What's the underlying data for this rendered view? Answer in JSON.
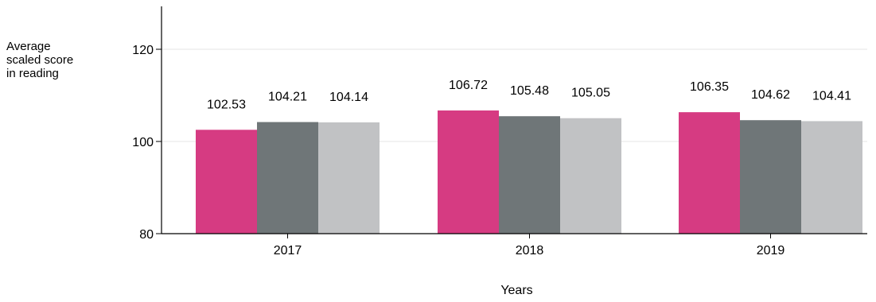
{
  "chart_data": {
    "type": "bar",
    "categories": [
      "2017",
      "2018",
      "2019"
    ],
    "series": [
      {
        "color": "#d63b82",
        "values": [
          102.53,
          106.72,
          106.35
        ]
      },
      {
        "color": "#6f7678",
        "values": [
          104.21,
          105.48,
          104.62
        ]
      },
      {
        "color": "#c1c2c4",
        "values": [
          104.14,
          105.05,
          104.41
        ]
      }
    ],
    "data_labels": [
      [
        "102.53",
        "104.21",
        "104.14"
      ],
      [
        "106.72",
        "105.48",
        "105.05"
      ],
      [
        "106.35",
        "104.62",
        "104.41"
      ]
    ],
    "ylabel_lines": [
      "Average",
      "scaled score",
      "in reading"
    ],
    "xlabel": "Years",
    "ylim": [
      80,
      130
    ],
    "yticks": [
      80,
      100,
      120
    ],
    "ytick_labels": [
      "80",
      "100",
      "120"
    ],
    "grid": true,
    "gridline_color": "#e6e6e6",
    "legend": false
  }
}
